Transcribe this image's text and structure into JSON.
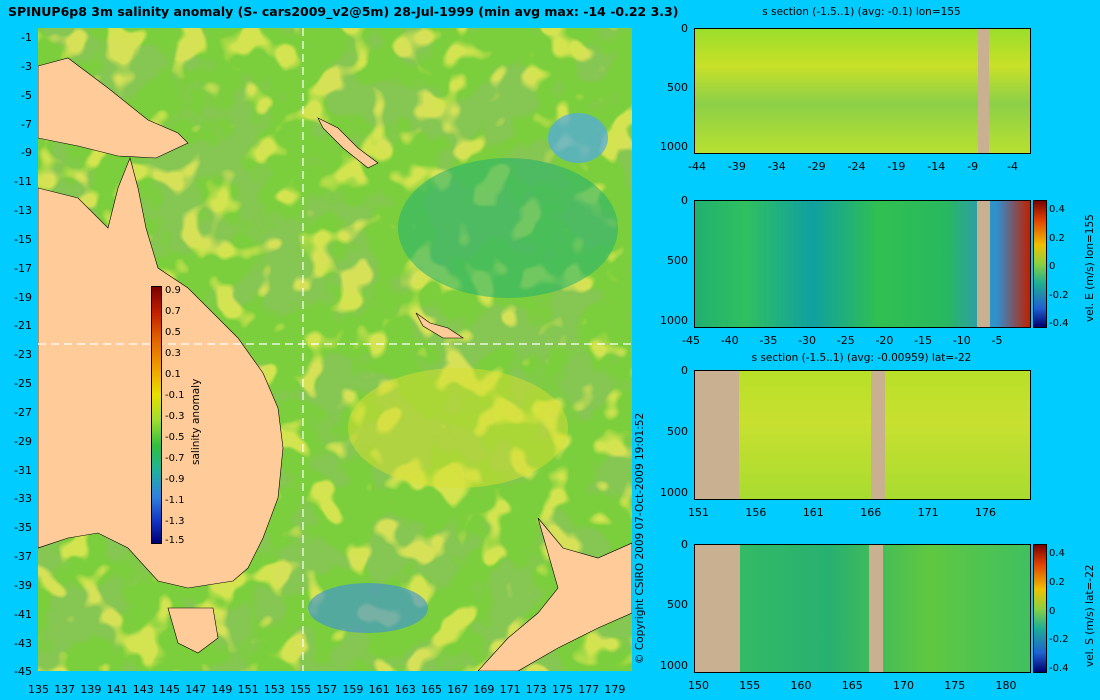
{
  "map": {
    "title": "SPINUP6p8 3m salinity anomaly (S- cars2009_v2@5m) 28-Jul-1999 (min avg max: -14 -0.22 3.3)",
    "x_ticks": [
      "135",
      "137",
      "139",
      "141",
      "143",
      "145",
      "147",
      "149",
      "151",
      "153",
      "155",
      "157",
      "159",
      "161",
      "163",
      "165",
      "167",
      "169",
      "171",
      "173",
      "175",
      "177",
      "179"
    ],
    "y_ticks": [
      "-1",
      "-3",
      "-5",
      "-7",
      "-9",
      "-11",
      "-13",
      "-15",
      "-17",
      "-19",
      "-21",
      "-23",
      "-25",
      "-27",
      "-29",
      "-31",
      "-33",
      "-35",
      "-37",
      "-39",
      "-41",
      "-43",
      "-45"
    ],
    "colorbar": {
      "label": "salinity anomaly",
      "ticks": [
        "0.9",
        "0.7",
        "0.5",
        "0.3",
        "0.1",
        "-0.1",
        "-0.3",
        "-0.5",
        "-0.7",
        "-0.9",
        "-1.1",
        "-1.3",
        "-1.5"
      ],
      "range": [
        -1.5,
        1.0
      ]
    },
    "section_lines": {
      "lon": 155,
      "lat": -22
    },
    "colors": {
      "land": "#ffcc99",
      "background": "#00ccff"
    }
  },
  "copyright": "© Copyright CSIRO 2009  07-Oct-2009 19:01:52",
  "panels": [
    {
      "title": "s section (-1.5..1) (avg: -0.1) lon=155",
      "x_ticks": [
        "-44",
        "-39",
        "-34",
        "-29",
        "-24",
        "-19",
        "-14",
        "-9",
        "-4"
      ],
      "y_ticks": [
        "0",
        "500",
        "1000"
      ],
      "colorbar_label": "",
      "colorbar_ticks": []
    },
    {
      "title": "",
      "x_ticks": [
        "-45",
        "-40",
        "-35",
        "-30",
        "-25",
        "-20",
        "-15",
        "-10",
        "-5"
      ],
      "y_ticks": [
        "0",
        "500",
        "1000"
      ],
      "colorbar_label": "vel. E (m/s) lon=155",
      "colorbar_ticks": [
        "0.4",
        "0.2",
        "0",
        "-0.2",
        "-0.4"
      ]
    },
    {
      "title": "s section (-1.5..1) (avg: -0.00959) lat=-22",
      "x_ticks": [
        "151",
        "156",
        "161",
        "166",
        "171",
        "176"
      ],
      "y_ticks": [
        "0",
        "500",
        "1000"
      ],
      "colorbar_label": "",
      "colorbar_ticks": []
    },
    {
      "title": "",
      "x_ticks": [
        "150",
        "155",
        "160",
        "165",
        "170",
        "175",
        "180"
      ],
      "y_ticks": [
        "0",
        "500",
        "1000"
      ],
      "colorbar_label": "vel. S (m/s) lat=-22",
      "colorbar_ticks": [
        "0.4",
        "0.2",
        "0",
        "-0.2",
        "-0.4"
      ]
    }
  ]
}
